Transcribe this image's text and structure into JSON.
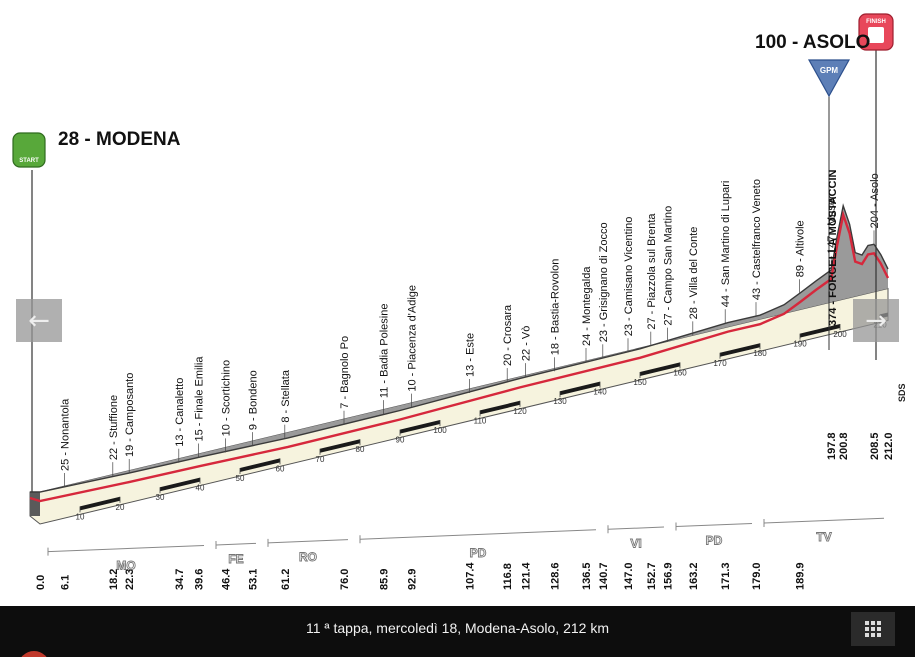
{
  "colors": {
    "profile_fill": "#9a9a9a",
    "profile_dark": "#5a5a5a",
    "road_line": "#d6283c",
    "km_band": "#f6f3de",
    "start_icon": "#58a83a",
    "finish_icon": "#e8475a",
    "gpm_icon": "#5d7fb7"
  },
  "start": {
    "altitude_name": "28 - MODENA",
    "icon_label": "START"
  },
  "finish": {
    "altitude_name": "100 - ASOLO",
    "icon_label": "FINISH"
  },
  "gpm": {
    "icon_label": "GPM",
    "climb_label": "374 - FORCELLA MOSTACCIN"
  },
  "end_code": "SDS",
  "chart_data": {
    "type": "area",
    "title": "",
    "x": [
      0.0,
      6.1,
      18.2,
      22.3,
      34.7,
      39.6,
      46.4,
      53.1,
      61.2,
      76.0,
      85.9,
      92.9,
      107.4,
      116.8,
      121.4,
      128.6,
      136.5,
      140.7,
      147.0,
      152.7,
      156.9,
      163.2,
      171.3,
      179.0,
      189.9,
      197.8,
      200.8,
      208.5,
      212.0
    ],
    "y": [
      28,
      25,
      22,
      19,
      13,
      15,
      10,
      9,
      8,
      7,
      11,
      10,
      13,
      20,
      22,
      18,
      24,
      23,
      23,
      27,
      27,
      28,
      44,
      43,
      89,
      147,
      374,
      204,
      100
    ],
    "xlim": [
      0,
      212
    ],
    "places": [
      {
        "km": "0.0",
        "label": ""
      },
      {
        "km": "6.1",
        "label": "25 - Nonantola"
      },
      {
        "km": "18.2",
        "label": "22 - Stuffione"
      },
      {
        "km": "22.3",
        "label": "19 - Camposanto"
      },
      {
        "km": "34.7",
        "label": "13 - Canaletto"
      },
      {
        "km": "39.6",
        "label": "15 - Finale Emilia"
      },
      {
        "km": "46.4",
        "label": "10 - Scortichino"
      },
      {
        "km": "53.1",
        "label": "9 - Bondeno"
      },
      {
        "km": "61.2",
        "label": "8 - Stellata"
      },
      {
        "km": "76.0",
        "label": "7 - Bagnolo Po"
      },
      {
        "km": "85.9",
        "label": "11 - Badia Polesine"
      },
      {
        "km": "92.9",
        "label": "10 - Piacenza d'Adige"
      },
      {
        "km": "107.4",
        "label": "13 - Este"
      },
      {
        "km": "116.8",
        "label": "20 - Crosara"
      },
      {
        "km": "121.4",
        "label": "22 - Vò"
      },
      {
        "km": "128.6",
        "label": "18 - Bastia-Rovolon"
      },
      {
        "km": "136.5",
        "label": "24 - Montegalda"
      },
      {
        "km": "140.7",
        "label": "23 - Grisignano di Zocco"
      },
      {
        "km": "147.0",
        "label": "23 - Camisano Vicentino"
      },
      {
        "km": "152.7",
        "label": "27 - Piazzola sul Brenta"
      },
      {
        "km": "156.9",
        "label": "27 - Campo San Martino"
      },
      {
        "km": "163.2",
        "label": "28 - Villa del Conte"
      },
      {
        "km": "171.3",
        "label": "44 - San Martino di Lupari"
      },
      {
        "km": "179.0",
        "label": "43 - Castelfranco Veneto"
      },
      {
        "km": "189.9",
        "label": "89 - Altivole"
      },
      {
        "km": "197.8",
        "label": "147 - Maser"
      },
      {
        "km": "200.8",
        "label": ""
      },
      {
        "km": "208.5",
        "label": "204 - Asolo"
      },
      {
        "km": "212.0",
        "label": ""
      }
    ],
    "scale_ticks": [
      "10",
      "20",
      "30",
      "40",
      "50",
      "60",
      "70",
      "80",
      "90",
      "100",
      "110",
      "120",
      "130",
      "140",
      "150",
      "160",
      "170",
      "180",
      "190",
      "200",
      "210"
    ],
    "provinces": [
      {
        "label": "MO",
        "from": 0.0,
        "to": 42.0
      },
      {
        "label": "FE",
        "from": 42.0,
        "to": 55.0
      },
      {
        "label": "RO",
        "from": 55.0,
        "to": 78.0
      },
      {
        "label": "PD",
        "from": 78.0,
        "to": 140.0
      },
      {
        "label": "VI",
        "from": 140.0,
        "to": 157.0
      },
      {
        "label": "PD",
        "from": 157.0,
        "to": 179.0
      },
      {
        "label": "TV",
        "from": 179.0,
        "to": 212.0
      }
    ]
  },
  "caption": "11 ª tappa, mercoledì 18, Modena-Asolo, 212 km",
  "nav": {
    "prev_glyph": "←",
    "next_glyph": "→"
  }
}
